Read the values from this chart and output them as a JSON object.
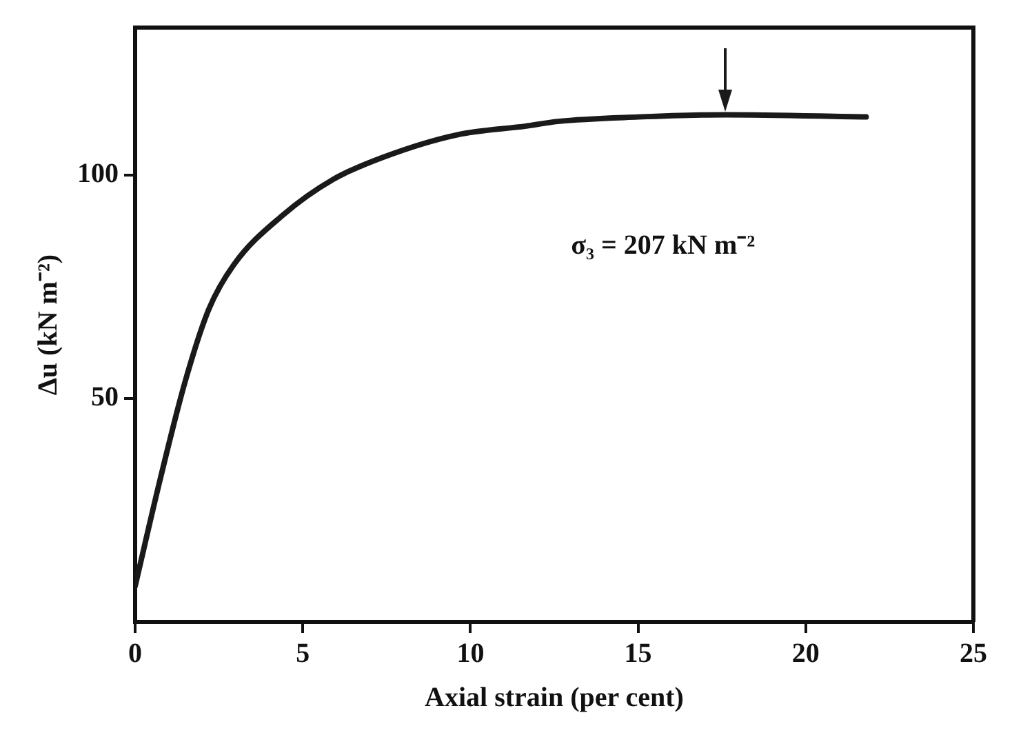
{
  "chart_data": {
    "type": "line",
    "xlabel": "Axial strain (per cent)",
    "ylabel": "Δu (kN m⁻²)",
    "annotations": [
      "σ₃ = 207 kN m⁻²"
    ],
    "series": [
      {
        "color": "#1a1a1a",
        "x": [
          0,
          0.75,
          1.5,
          2.2,
          2.95,
          4.4,
          5.9,
          7.4,
          9.6,
          11.7,
          12.6,
          15,
          17.6,
          21.8
        ],
        "values": [
          8,
          32,
          54,
          70,
          80,
          91,
          99,
          104,
          109,
          111,
          112,
          113,
          113.5,
          113
        ]
      }
    ],
    "xlim": [
      0,
      25
    ],
    "ylim": [
      0,
      133
    ],
    "xticks": [
      0,
      5,
      10,
      15,
      20,
      25
    ],
    "yticks": [
      50,
      100
    ],
    "grid": false,
    "legend": false,
    "marker": "none",
    "line_style": "solid"
  }
}
